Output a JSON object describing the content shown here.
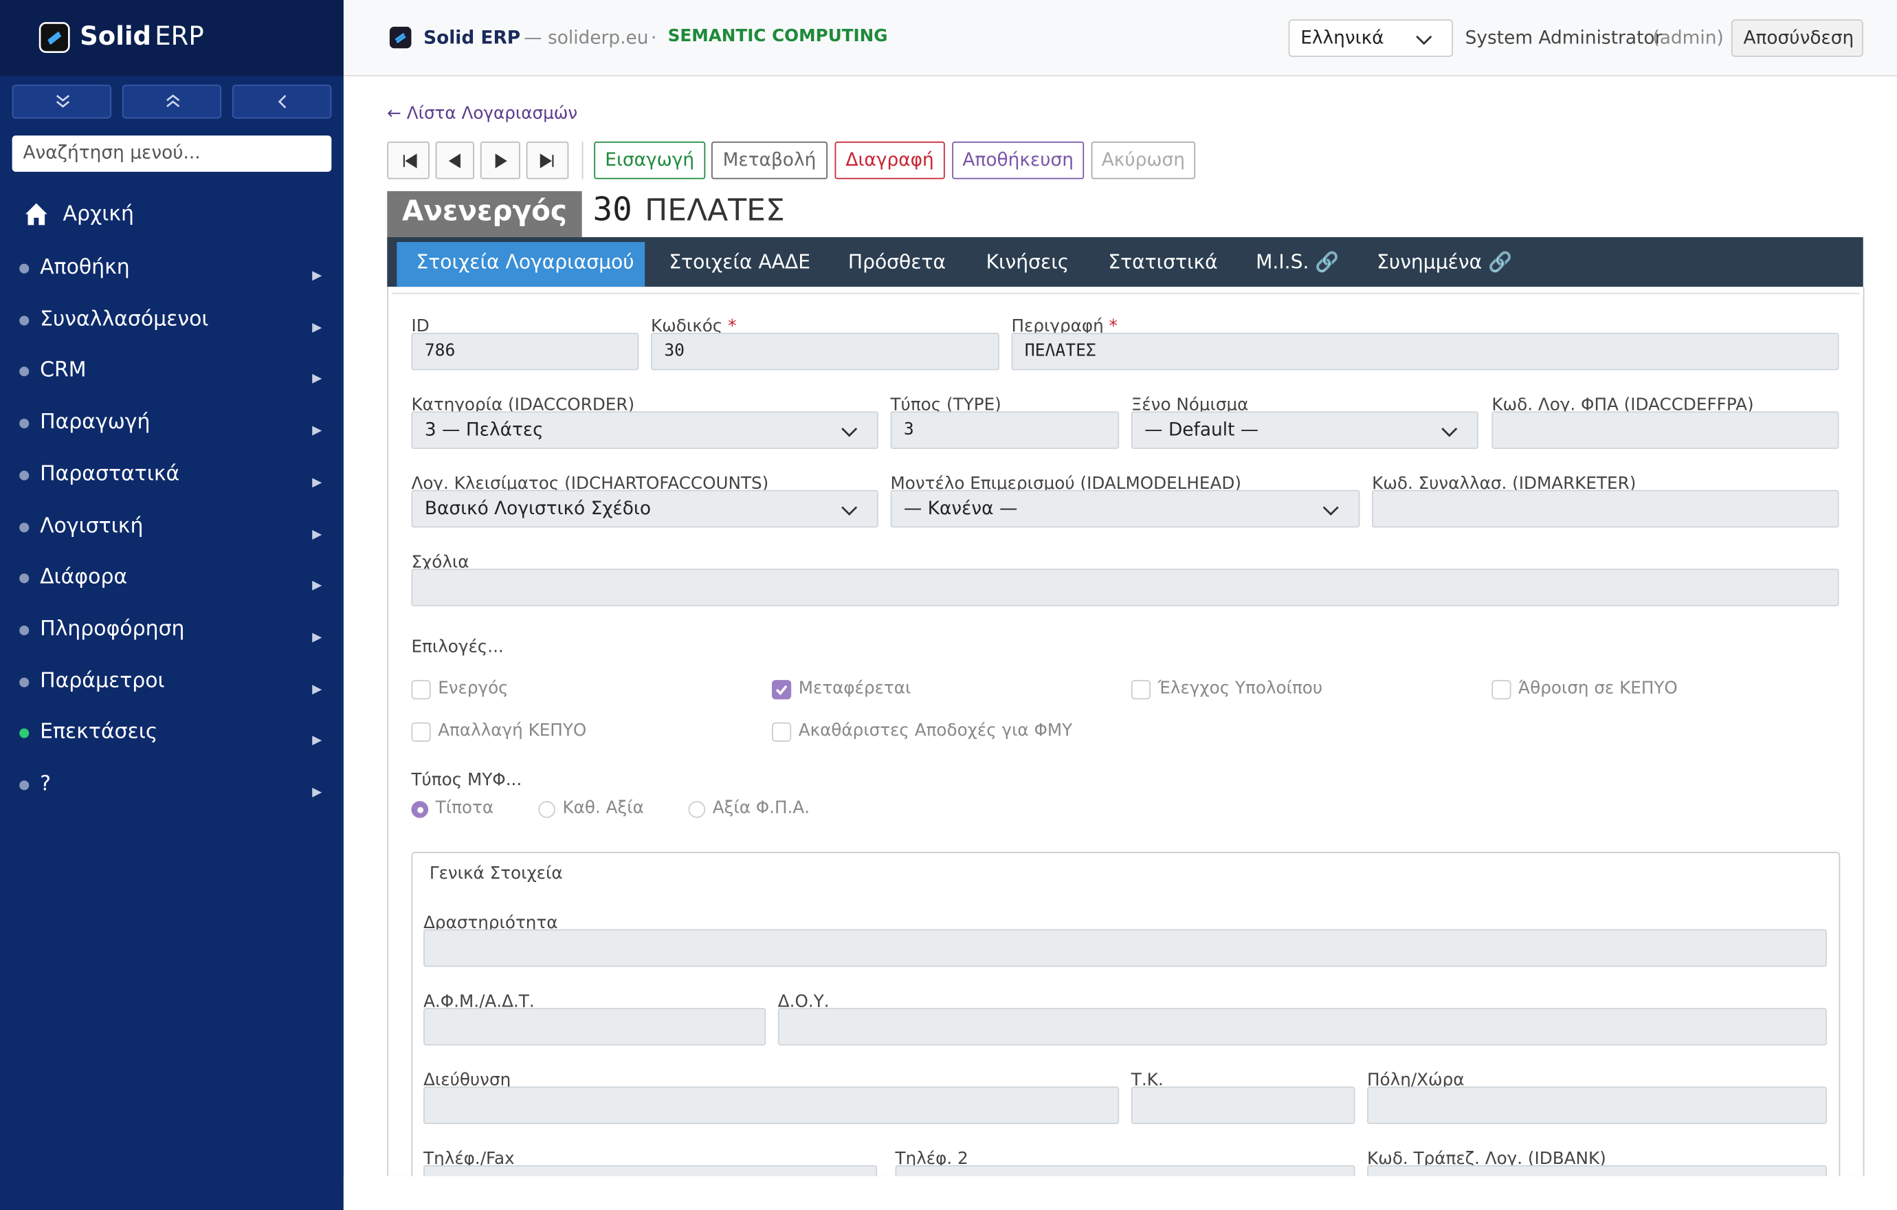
{
  "sidebar": {
    "brand_bold": "Solid",
    "brand_light": "ERP",
    "search_placeholder": "Αναζήτηση μενού...",
    "home": "Αρχική",
    "menu": [
      {
        "label": "Αποθήκη"
      },
      {
        "label": "Συναλλασόμενοι"
      },
      {
        "label": "CRM"
      },
      {
        "label": "Παραγωγή"
      },
      {
        "label": "Παραστατικά"
      },
      {
        "label": "Λογιστική"
      },
      {
        "label": "Διάφορα"
      },
      {
        "label": "Πληροφόρηση"
      },
      {
        "label": "Παράμετροι"
      },
      {
        "label": "Επεκτάσεις",
        "active": true
      },
      {
        "label": "?"
      }
    ]
  },
  "topbar": {
    "app": "Solid ERP",
    "domain": "— soliderp.eu",
    "separator": "·",
    "company": "SEMANTIC COMPUTING",
    "language": "Ελληνικά",
    "user": "System Administrator",
    "user_login": "(admin)",
    "logout": "Αποσύνδεση"
  },
  "back_link": "← Λίστα Λογαριασμών",
  "toolbar": {
    "actions": [
      "Εισαγωγή",
      "Μεταβολή",
      "Διαγραφή",
      "Αποθήκευση",
      "Ακύρωση"
    ]
  },
  "record": {
    "status": "Ανενεργός",
    "code": "30",
    "name": "ΠΕΛΑΤΕΣ"
  },
  "tabs": [
    "Στοιχεία Λογαριασμού",
    "Στοιχεία ΑΑΔΕ",
    "Πρόσθετα",
    "Κινήσεις",
    "Στατιστικά",
    "M.I.S. 🔗",
    "Συνημμένα 🔗"
  ],
  "fields": [
    {
      "label": "ID",
      "value": "786"
    },
    {
      "label": "Κωδικός",
      "required": true,
      "value": "30"
    },
    {
      "label": "Περιγραφή",
      "required": true,
      "value": "ΠΕΛΑΤΕΣ"
    },
    {
      "label": "Κατηγορία (IDACCORDER)",
      "select": true,
      "value": "3 — Πελάτες"
    },
    {
      "label": "Τύπος (TYPE)",
      "value": "3"
    },
    {
      "label": "Ξένο Νόμισμα",
      "select": true,
      "value": "— Default —"
    },
    {
      "label": "Κωδ. Λογ. ΦΠΑ (IDACCDEFFPA)"
    },
    {
      "label": "Λογ. Κλεισίματος (IDCHARTOFACCOUNTS)",
      "select": true,
      "value": "Βασικό Λογιστικό Σχέδιο"
    },
    {
      "label": "Μοντέλο Επιμερισμού (IDALMODELHEAD)",
      "select": true,
      "value": "— Κανένα —"
    },
    {
      "label": "Κωδ. Συναλλασ. (IDMARKETER)"
    },
    {
      "label": "Σχόλια"
    }
  ],
  "options": {
    "label": "Επιλογές...",
    "items": [
      {
        "label": "Ενεργός"
      },
      {
        "label": "Μεταφέρεται",
        "checked": true
      },
      {
        "label": "Έλεγχος Υπολοίπου"
      },
      {
        "label": "Άθροιση σε ΚΕΠΥΟ"
      },
      {
        "label": "Απαλλαγή ΚΕΠΥΟ"
      },
      {
        "label": "Ακαθάριστες Αποδοχές για ΦΜΥ"
      }
    ]
  },
  "myf": {
    "label": "Τύπος ΜΥΦ...",
    "items": [
      {
        "label": "Τίποτα",
        "checked": true
      },
      {
        "label": "Καθ. Αξία"
      },
      {
        "label": "Αξία Φ.Π.Α."
      }
    ]
  },
  "general": {
    "legend": "Γενικά Στοιχεία",
    "fields": [
      {
        "label": "Δραστηριότητα"
      },
      {
        "label": "Α.Φ.Μ./Α.Δ.Τ."
      },
      {
        "label": "Δ.Ο.Υ."
      },
      {
        "label": "Διεύθυνση"
      },
      {
        "label": "Τ.Κ."
      },
      {
        "label": "Πόλη/Χώρα"
      },
      {
        "label": "Τηλέφ./Fax"
      },
      {
        "label": "Τηλέφ. 2"
      },
      {
        "label": "Κωδ. Τράπεζ. Λογ. (IDBANK)"
      }
    ]
  }
}
